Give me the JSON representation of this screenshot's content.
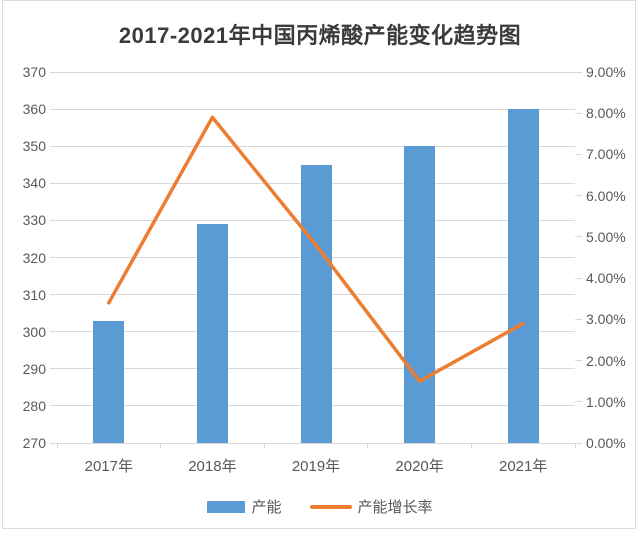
{
  "chart_data": {
    "type": "combo-bar-line",
    "title": "2017-2021年中国丙烯酸产能变化趋势图",
    "categories": [
      "2017年",
      "2018年",
      "2019年",
      "2020年",
      "2021年"
    ],
    "series": [
      {
        "name": "产能",
        "type": "bar",
        "axis": "left",
        "color": "#5B9BD5",
        "values": [
          303,
          329,
          345,
          350,
          360
        ]
      },
      {
        "name": "产能增长率",
        "type": "line",
        "axis": "right",
        "color": "#ED7D31",
        "values": [
          3.4,
          7.9,
          4.8,
          1.5,
          2.9
        ]
      }
    ],
    "left_axis": {
      "min": 270,
      "max": 370,
      "step": 10,
      "tick_labels": [
        "270",
        "280",
        "290",
        "300",
        "310",
        "320",
        "330",
        "340",
        "350",
        "360",
        "370"
      ]
    },
    "right_axis": {
      "min": 0,
      "max": 9,
      "step": 1,
      "tick_labels": [
        "0.00%",
        "1.00%",
        "2.00%",
        "3.00%",
        "4.00%",
        "5.00%",
        "6.00%",
        "7.00%",
        "8.00%",
        "9.00%"
      ]
    },
    "grid": true,
    "legend_position": "bottom",
    "colors": {
      "gridline": "#d9d9d9",
      "axis_text": "#595959",
      "title_text": "#3b3b3b"
    }
  }
}
